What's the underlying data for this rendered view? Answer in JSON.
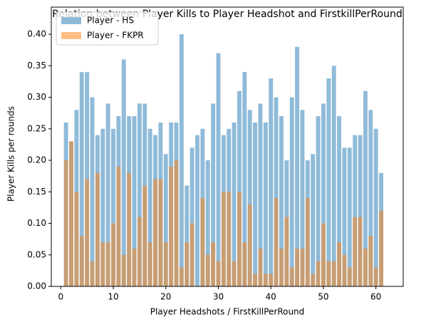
{
  "chart_data": {
    "type": "bar",
    "title": "Relation between Player Kills to Player Headshot and FirstkillPerRound",
    "x_label": "Player Headshots / FirstKillPerRound",
    "y_label": "Player Kills per rounds",
    "x": [
      1,
      2,
      3,
      4,
      5,
      6,
      7,
      8,
      9,
      10,
      11,
      12,
      13,
      14,
      15,
      16,
      17,
      18,
      19,
      20,
      21,
      22,
      23,
      24,
      25,
      26,
      27,
      28,
      29,
      30,
      31,
      32,
      33,
      34,
      35,
      36,
      37,
      38,
      39,
      40,
      41,
      42,
      43,
      44,
      45,
      46,
      47,
      48,
      49,
      50,
      51,
      52,
      53,
      54,
      55,
      56,
      57,
      58,
      59,
      60,
      61
    ],
    "series": [
      {
        "name": "Player - HS",
        "color": "#1f77b4",
        "values": [
          0.26,
          0.23,
          0.28,
          0.34,
          0.34,
          0.3,
          0.24,
          0.25,
          0.29,
          0.25,
          0.27,
          0.36,
          0.27,
          0.27,
          0.29,
          0.29,
          0.25,
          0.24,
          0.26,
          0.21,
          0.26,
          0.26,
          0.4,
          0.16,
          0.22,
          0.24,
          0.25,
          0.2,
          0.29,
          0.37,
          0.24,
          0.25,
          0.26,
          0.31,
          0.34,
          0.28,
          0.26,
          0.29,
          0.26,
          0.33,
          0.3,
          0.27,
          0.2,
          0.3,
          0.38,
          0.28,
          0.2,
          0.21,
          0.27,
          0.29,
          0.33,
          0.35,
          0.27,
          0.22,
          0.22,
          0.24,
          0.24,
          0.31,
          0.28,
          0.25,
          0.18
        ]
      },
      {
        "name": "Player - FKPR",
        "color": "#ff7f0e",
        "values": [
          0.2,
          0.23,
          0.15,
          0.08,
          0.17,
          0.04,
          0.18,
          0.07,
          0.07,
          0.1,
          0.19,
          0.05,
          0.18,
          0.06,
          0.11,
          0.16,
          0.07,
          0.17,
          0.17,
          0.07,
          0.19,
          0.2,
          0.03,
          0.07,
          0.1,
          0.0,
          0.14,
          0.05,
          0.07,
          0.04,
          0.15,
          0.15,
          0.04,
          0.15,
          0.07,
          0.13,
          0.02,
          0.06,
          0.02,
          0.02,
          0.14,
          0.06,
          0.11,
          0.03,
          0.06,
          0.06,
          0.14,
          0.02,
          0.04,
          0.1,
          0.04,
          0.04,
          0.07,
          0.05,
          0.03,
          0.11,
          0.11,
          0.06,
          0.08,
          0.03,
          0.12
        ]
      }
    ],
    "xlim": [
      -1.8,
      65.2
    ],
    "xticks": [
      0,
      10,
      20,
      30,
      40,
      50,
      60
    ],
    "ylim": [
      0,
      0.443
    ],
    "yticks": [
      {
        "value": 0,
        "label": "0.00"
      },
      {
        "value": 0.05,
        "label": "0.05"
      },
      {
        "value": 0.1,
        "label": "0.10"
      },
      {
        "value": 0.15,
        "label": "0.15"
      },
      {
        "value": 0.2,
        "label": "0.20"
      },
      {
        "value": 0.25,
        "label": "0.25"
      },
      {
        "value": 0.3,
        "label": "0.30"
      },
      {
        "value": 0.35,
        "label": "0.35"
      },
      {
        "value": 0.4,
        "label": "0.40"
      }
    ],
    "legend": "upper left",
    "grid": false
  }
}
